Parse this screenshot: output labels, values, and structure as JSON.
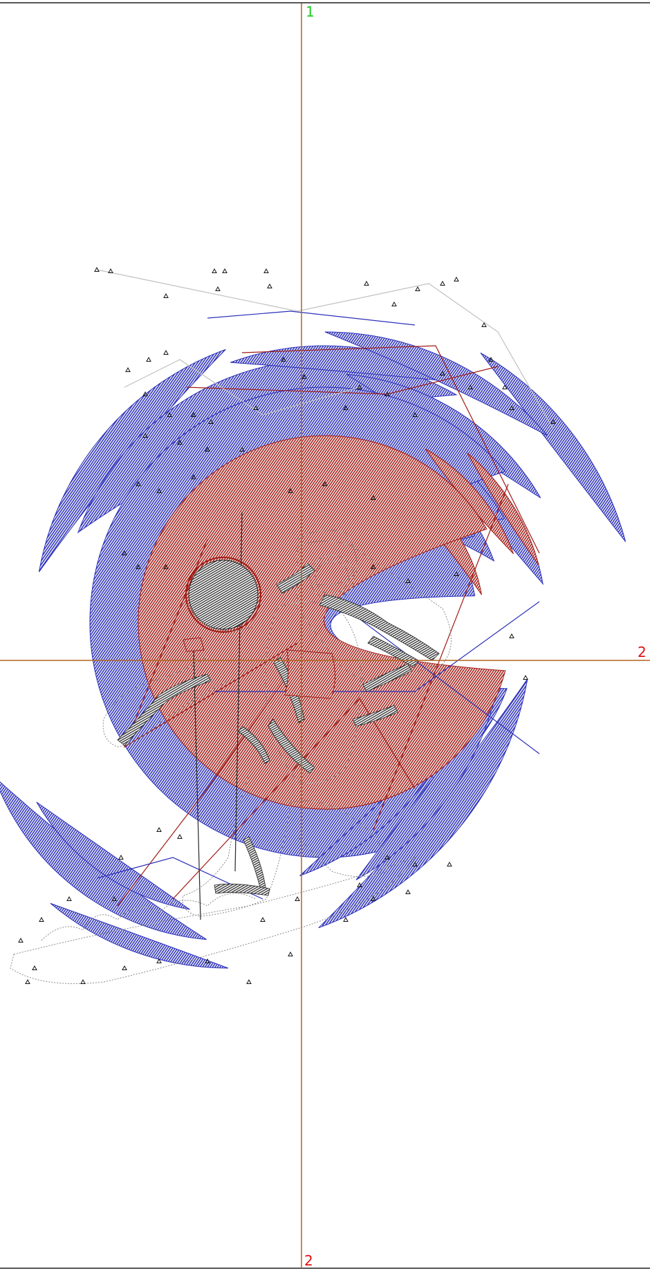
{
  "axis_labels": {
    "vertical_top": "1",
    "horizontal_right": "2",
    "vertical_bottom": "2"
  },
  "colors": {
    "background": "#ffffff",
    "border": "#555555",
    "axis_line": "#b0631f",
    "stitch_blue": "#2a2fb8",
    "stitch_red": "#a11a14",
    "stitch_black": "#262626",
    "outline_gray": "#8a8a8a",
    "label_green": "#1ecc1e",
    "label_red": "#e01010"
  },
  "icons": {
    "marker": "triangle-marker-icon",
    "helmet": "helmet-visor-icon"
  }
}
